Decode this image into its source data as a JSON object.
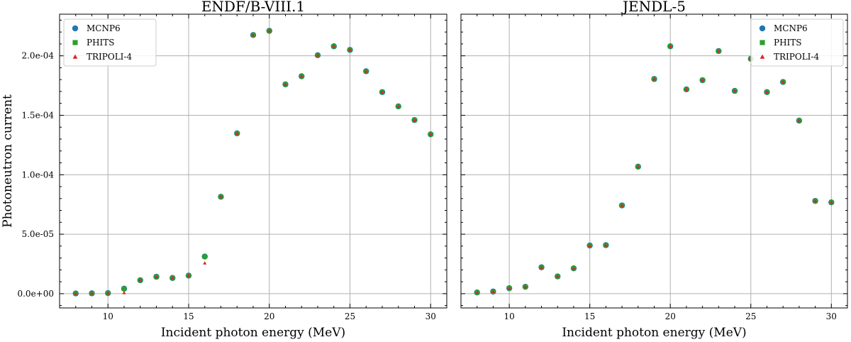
{
  "chart_data": [
    {
      "type": "scatter",
      "title": "ENDF/B-VIII.1",
      "xlabel": "Incident photon energy (MeV)",
      "ylabel": "Photoneutron current",
      "xlim": [
        7,
        31
      ],
      "ylim": [
        -1.2e-05,
        0.000235
      ],
      "xticks": [
        10,
        15,
        20,
        25,
        30
      ],
      "yticks": [
        0,
        5e-05,
        0.0001,
        0.00015,
        0.0002
      ],
      "ytick_labels": [
        "0.0e+00",
        "5.0e-05",
        "1.0e-04",
        "1.5e-04",
        "2.0e-04"
      ],
      "grid": true,
      "legend_position": "top-left",
      "x": [
        8,
        9,
        10,
        11,
        12,
        13,
        14,
        15,
        16,
        17,
        18,
        19,
        20,
        21,
        22,
        23,
        24,
        25,
        26,
        27,
        28,
        29,
        30
      ],
      "series": [
        {
          "name": "MCNP6",
          "marker": "circle",
          "color": "#1f77b4",
          "values": [
            2e-07,
            3e-07,
            5e-07,
            4.2e-06,
            1.13e-05,
            1.42e-05,
            1.32e-05,
            1.52e-05,
            3.12e-05,
            8.15e-05,
            0.0001348,
            0.0002175,
            0.000221,
            0.000176,
            0.0001828,
            0.0002005,
            0.000208,
            0.000205,
            0.000187,
            0.0001695,
            0.0001575,
            0.000146,
            0.000134
          ]
        },
        {
          "name": "PHITS",
          "marker": "square",
          "color": "#2ca02c",
          "values": [
            2e-07,
            3e-07,
            5e-07,
            4.2e-06,
            1.13e-05,
            1.42e-05,
            1.32e-05,
            1.52e-05,
            3.12e-05,
            8.15e-05,
            0.0001348,
            0.0002175,
            0.000221,
            0.000176,
            0.0001828,
            0.0002005,
            0.000208,
            0.000205,
            0.000187,
            0.0001695,
            0.0001575,
            0.000146,
            0.000134
          ]
        },
        {
          "name": "TRIPOLI-4",
          "marker": "triangle",
          "color": "#d62728",
          "values": [
            2e-07,
            3e-07,
            5e-07,
            8e-07,
            1.13e-05,
            1.42e-05,
            1.32e-05,
            1.52e-05,
            2.58e-05,
            8.15e-05,
            0.0001348,
            0.0002175,
            0.000221,
            0.000176,
            0.0001828,
            0.0002005,
            0.000208,
            0.000205,
            0.000187,
            0.0001695,
            0.0001575,
            0.000146,
            0.000134
          ]
        }
      ]
    },
    {
      "type": "scatter",
      "title": "JENDL-5",
      "xlabel": "Incident photon energy (MeV)",
      "ylabel": "",
      "xlim": [
        7,
        31
      ],
      "ylim": [
        -1.2e-05,
        0.000235
      ],
      "xticks": [
        10,
        15,
        20,
        25,
        30
      ],
      "yticks": [
        0,
        5e-05,
        0.0001,
        0.00015,
        0.0002
      ],
      "ytick_labels": [],
      "grid": true,
      "legend_position": "top-right",
      "x": [
        8,
        9,
        10,
        11,
        12,
        13,
        14,
        15,
        16,
        17,
        18,
        19,
        20,
        21,
        22,
        23,
        24,
        25,
        26,
        27,
        28,
        29,
        30
      ],
      "series": [
        {
          "name": "MCNP6",
          "marker": "circle",
          "color": "#1f77b4",
          "values": [
            1e-06,
            1.8e-06,
            4.6e-06,
            5.8e-06,
            2.22e-05,
            1.45e-05,
            2.13e-05,
            4.05e-05,
            4.08e-05,
            7.42e-05,
            0.0001068,
            0.0001805,
            0.000208,
            0.0001718,
            0.0001795,
            0.000204,
            0.0001705,
            0.0001975,
            0.0001695,
            0.000178,
            0.0001455,
            7.8e-05,
            7.68e-05
          ]
        },
        {
          "name": "PHITS",
          "marker": "square",
          "color": "#2ca02c",
          "values": [
            1e-06,
            1.8e-06,
            4.6e-06,
            5.8e-06,
            2.22e-05,
            1.45e-05,
            2.13e-05,
            4.05e-05,
            4.08e-05,
            7.42e-05,
            0.0001068,
            0.0001805,
            0.000208,
            0.0001718,
            0.0001795,
            0.000204,
            0.0001705,
            0.0001975,
            0.0001695,
            0.000178,
            0.0001455,
            7.8e-05,
            7.68e-05
          ]
        },
        {
          "name": "TRIPOLI-4",
          "marker": "triangle",
          "color": "#d62728",
          "values": [
            1e-06,
            1.8e-06,
            4.6e-06,
            5.8e-06,
            2.22e-05,
            1.45e-05,
            2.13e-05,
            4.05e-05,
            4.08e-05,
            7.42e-05,
            0.0001068,
            0.0001805,
            0.000208,
            0.0001718,
            0.0001795,
            0.000204,
            0.0001705,
            0.0001975,
            0.0001695,
            0.000178,
            0.0001455,
            7.8e-05,
            7.68e-05
          ]
        }
      ]
    }
  ]
}
